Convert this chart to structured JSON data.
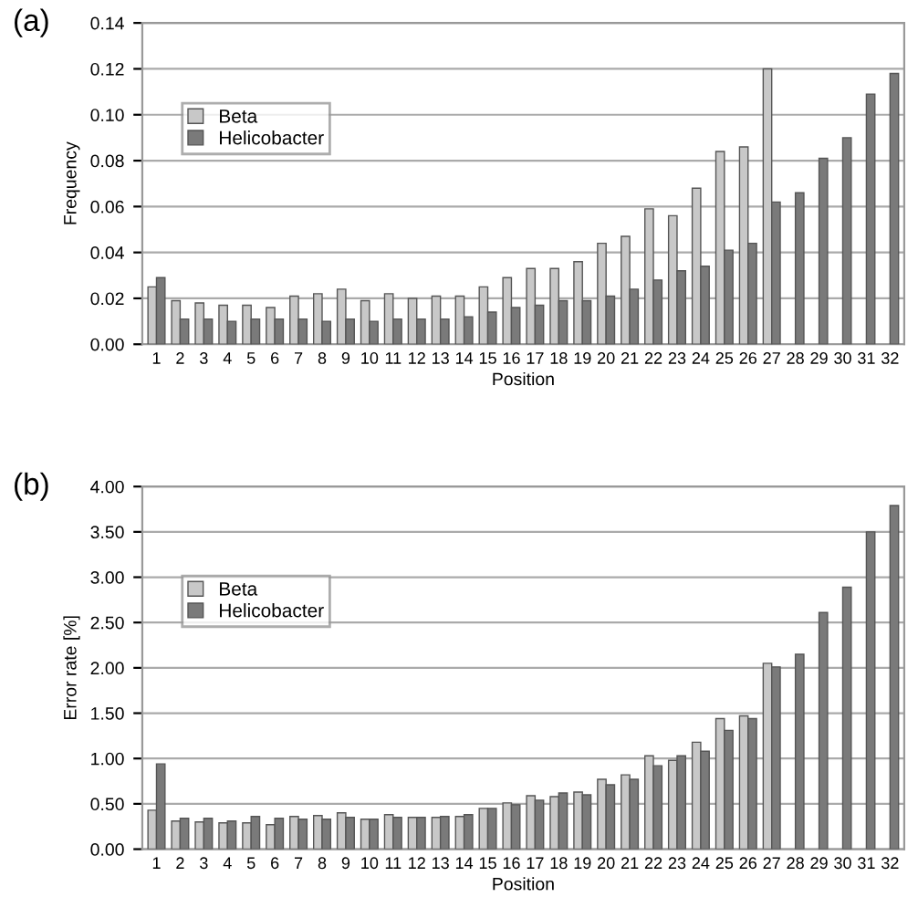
{
  "chart_data": [
    {
      "type": "bar",
      "xlabel": "Position",
      "ylabel": "Frequency",
      "annotations": [
        "(a)"
      ],
      "categories": [
        "1",
        "2",
        "3",
        "4",
        "5",
        "6",
        "7",
        "8",
        "9",
        "10",
        "11",
        "12",
        "13",
        "14",
        "15",
        "16",
        "17",
        "18",
        "19",
        "20",
        "21",
        "22",
        "23",
        "24",
        "25",
        "26",
        "27",
        "28",
        "29",
        "30",
        "31",
        "32"
      ],
      "series": [
        {
          "name": "Beta",
          "color": "#c8c8c8",
          "values": [
            0.025,
            0.019,
            0.018,
            0.017,
            0.017,
            0.016,
            0.021,
            0.022,
            0.024,
            0.019,
            0.022,
            0.02,
            0.021,
            0.021,
            0.025,
            0.029,
            0.033,
            0.033,
            0.036,
            0.044,
            0.047,
            0.059,
            0.056,
            0.068,
            0.084,
            0.086,
            0.12,
            null,
            null,
            null,
            null,
            null
          ]
        },
        {
          "name": "Helicobacter",
          "color": "#7a7a7a",
          "values": [
            0.029,
            0.011,
            0.011,
            0.01,
            0.011,
            0.011,
            0.011,
            0.01,
            0.011,
            0.01,
            0.011,
            0.011,
            0.011,
            0.012,
            0.014,
            0.016,
            0.017,
            0.019,
            0.019,
            0.021,
            0.024,
            0.028,
            0.032,
            0.034,
            0.041,
            0.044,
            0.062,
            0.066,
            0.081,
            0.09,
            0.109,
            0.118
          ]
        }
      ],
      "ylim": [
        0,
        0.14
      ],
      "yticks": [
        {
          "value": 0,
          "label": "0.00"
        },
        {
          "value": 0.02,
          "label": "0.02"
        },
        {
          "value": 0.04,
          "label": "0.04"
        },
        {
          "value": 0.06,
          "label": "0.06"
        },
        {
          "value": 0.08,
          "label": "0.08"
        },
        {
          "value": 0.1,
          "label": "0.10"
        },
        {
          "value": 0.12,
          "label": "0.12"
        },
        {
          "value": 0.14,
          "label": "0.14"
        }
      ],
      "grid": "y",
      "legend": "top left"
    },
    {
      "type": "bar",
      "xlabel": "Position",
      "ylabel": "Error rate [%]",
      "annotations": [
        "(b)"
      ],
      "categories": [
        "1",
        "2",
        "3",
        "4",
        "5",
        "6",
        "7",
        "8",
        "9",
        "10",
        "11",
        "12",
        "13",
        "14",
        "15",
        "16",
        "17",
        "18",
        "19",
        "20",
        "21",
        "22",
        "23",
        "24",
        "25",
        "26",
        "27",
        "28",
        "29",
        "30",
        "31",
        "32"
      ],
      "series": [
        {
          "name": "Beta",
          "color": "#c8c8c8",
          "values": [
            0.43,
            0.31,
            0.3,
            0.29,
            0.29,
            0.27,
            0.36,
            0.37,
            0.4,
            0.33,
            0.38,
            0.35,
            0.35,
            0.36,
            0.45,
            0.51,
            0.59,
            0.58,
            0.63,
            0.77,
            0.82,
            1.03,
            0.98,
            1.18,
            1.44,
            1.47,
            2.05,
            null,
            null,
            null,
            null,
            null
          ]
        },
        {
          "name": "Helicobacter",
          "color": "#7a7a7a",
          "values": [
            0.94,
            0.34,
            0.34,
            0.31,
            0.36,
            0.34,
            0.33,
            0.33,
            0.35,
            0.33,
            0.35,
            0.35,
            0.36,
            0.38,
            0.45,
            0.49,
            0.54,
            0.62,
            0.6,
            0.71,
            0.77,
            0.92,
            1.03,
            1.08,
            1.31,
            1.44,
            2.01,
            2.15,
            2.61,
            2.89,
            3.5,
            3.79
          ]
        }
      ],
      "ylim": [
        0,
        4.0
      ],
      "yticks": [
        {
          "value": 0,
          "label": "0.00"
        },
        {
          "value": 0.5,
          "label": "0.50"
        },
        {
          "value": 1.0,
          "label": "1.00"
        },
        {
          "value": 1.5,
          "label": "1.50"
        },
        {
          "value": 2.0,
          "label": "2.00"
        },
        {
          "value": 2.5,
          "label": "2.50"
        },
        {
          "value": 3.0,
          "label": "3.00"
        },
        {
          "value": 3.5,
          "label": "3.50"
        },
        {
          "value": 4.0,
          "label": "4.00"
        }
      ],
      "grid": "y",
      "legend": "top left"
    }
  ]
}
